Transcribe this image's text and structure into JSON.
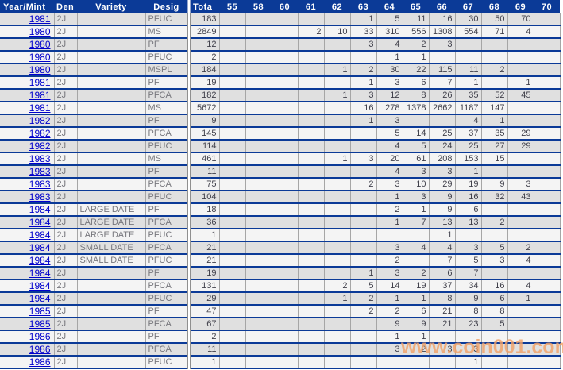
{
  "watermark": "www.coin001.com",
  "colors": {
    "header_bg": "#0b3a97",
    "row_separator": "#0b3a97",
    "cell_border": "#a6a6a6",
    "row_shaded": "#e0e0e0",
    "row_light": "#f4f4f4",
    "year_link": "#0000cc",
    "watermark_orange": "#f2a269"
  },
  "table": {
    "fixed_columns": [
      {
        "key": "year",
        "label": "Year/Mint"
      },
      {
        "key": "den",
        "label": "Den"
      },
      {
        "key": "variety",
        "label": "Variety"
      },
      {
        "key": "desig",
        "label": "Desig"
      },
      {
        "key": "total",
        "label": "Tota"
      }
    ],
    "grade_columns": [
      "55",
      "58",
      "60",
      "61",
      "62",
      "63",
      "64",
      "65",
      "66",
      "67",
      "68",
      "69",
      "70"
    ],
    "rows": [
      {
        "year": "1981",
        "den": "2J",
        "variety": "",
        "desig": "PFUC",
        "total": "183",
        "grades": [
          "",
          "",
          "",
          "",
          "",
          "1",
          "5",
          "11",
          "16",
          "30",
          "50",
          "70",
          ""
        ]
      },
      {
        "year": "1980",
        "den": "2J",
        "variety": "",
        "desig": "MS",
        "total": "2849",
        "grades": [
          "",
          "",
          "",
          "2",
          "10",
          "33",
          "310",
          "556",
          "1308",
          "554",
          "71",
          "4",
          ""
        ]
      },
      {
        "year": "1980",
        "den": "2J",
        "variety": "",
        "desig": "PF",
        "total": "12",
        "grades": [
          "",
          "",
          "",
          "",
          "",
          "3",
          "4",
          "2",
          "3",
          "",
          "",
          "",
          ""
        ]
      },
      {
        "year": "1980",
        "den": "2J",
        "variety": "",
        "desig": "PFUC",
        "total": "2",
        "grades": [
          "",
          "",
          "",
          "",
          "",
          "",
          "1",
          "1",
          "",
          "",
          "",
          "",
          ""
        ]
      },
      {
        "year": "1980",
        "den": "2J",
        "variety": "",
        "desig": "MSPL",
        "total": "184",
        "grades": [
          "",
          "",
          "",
          "",
          "1",
          "2",
          "30",
          "22",
          "115",
          "11",
          "2",
          "",
          ""
        ]
      },
      {
        "year": "1981",
        "den": "2J",
        "variety": "",
        "desig": "PF",
        "total": "19",
        "grades": [
          "",
          "",
          "",
          "",
          "",
          "1",
          "3",
          "6",
          "7",
          "1",
          "",
          "1",
          ""
        ]
      },
      {
        "year": "1981",
        "den": "2J",
        "variety": "",
        "desig": "PFCA",
        "total": "182",
        "grades": [
          "",
          "",
          "",
          "",
          "1",
          "3",
          "12",
          "8",
          "26",
          "35",
          "52",
          "45",
          ""
        ]
      },
      {
        "year": "1981",
        "den": "2J",
        "variety": "",
        "desig": "MS",
        "total": "5672",
        "grades": [
          "",
          "",
          "",
          "",
          "",
          "16",
          "278",
          "1378",
          "2662",
          "1187",
          "147",
          "",
          ""
        ]
      },
      {
        "year": "1982",
        "den": "2J",
        "variety": "",
        "desig": "PF",
        "total": "9",
        "grades": [
          "",
          "",
          "",
          "",
          "",
          "1",
          "3",
          "",
          "",
          "4",
          "1",
          "",
          ""
        ]
      },
      {
        "year": "1982",
        "den": "2J",
        "variety": "",
        "desig": "PFCA",
        "total": "145",
        "grades": [
          "",
          "",
          "",
          "",
          "",
          "",
          "5",
          "14",
          "25",
          "37",
          "35",
          "29",
          ""
        ]
      },
      {
        "year": "1982",
        "den": "2J",
        "variety": "",
        "desig": "PFUC",
        "total": "114",
        "grades": [
          "",
          "",
          "",
          "",
          "",
          "",
          "4",
          "5",
          "24",
          "25",
          "27",
          "29",
          ""
        ]
      },
      {
        "year": "1983",
        "den": "2J",
        "variety": "",
        "desig": "MS",
        "total": "461",
        "grades": [
          "",
          "",
          "",
          "",
          "1",
          "3",
          "20",
          "61",
          "208",
          "153",
          "15",
          "",
          ""
        ]
      },
      {
        "year": "1983",
        "den": "2J",
        "variety": "",
        "desig": "PF",
        "total": "11",
        "grades": [
          "",
          "",
          "",
          "",
          "",
          "",
          "4",
          "3",
          "3",
          "1",
          "",
          "",
          ""
        ]
      },
      {
        "year": "1983",
        "den": "2J",
        "variety": "",
        "desig": "PFCA",
        "total": "75",
        "grades": [
          "",
          "",
          "",
          "",
          "",
          "2",
          "3",
          "10",
          "29",
          "19",
          "9",
          "3",
          ""
        ]
      },
      {
        "year": "1983",
        "den": "2J",
        "variety": "",
        "desig": "PFUC",
        "total": "104",
        "grades": [
          "",
          "",
          "",
          "",
          "",
          "",
          "1",
          "3",
          "9",
          "16",
          "32",
          "43",
          ""
        ]
      },
      {
        "year": "1984",
        "den": "2J",
        "variety": "LARGE DATE",
        "desig": "PF",
        "total": "18",
        "grades": [
          "",
          "",
          "",
          "",
          "",
          "",
          "2",
          "1",
          "9",
          "6",
          "",
          "",
          ""
        ]
      },
      {
        "year": "1984",
        "den": "2J",
        "variety": "LARGE DATE",
        "desig": "PFCA",
        "total": "36",
        "grades": [
          "",
          "",
          "",
          "",
          "",
          "",
          "1",
          "7",
          "13",
          "13",
          "2",
          "",
          ""
        ]
      },
      {
        "year": "1984",
        "den": "2J",
        "variety": "LARGE DATE",
        "desig": "PFUC",
        "total": "1",
        "grades": [
          "",
          "",
          "",
          "",
          "",
          "",
          "",
          "",
          "1",
          "",
          "",
          "",
          ""
        ]
      },
      {
        "year": "1984",
        "den": "2J",
        "variety": "SMALL DATE",
        "desig": "PFCA",
        "total": "21",
        "grades": [
          "",
          "",
          "",
          "",
          "",
          "",
          "3",
          "4",
          "4",
          "3",
          "5",
          "2",
          ""
        ]
      },
      {
        "year": "1984",
        "den": "2J",
        "variety": "SMALL DATE",
        "desig": "PFUC",
        "total": "21",
        "grades": [
          "",
          "",
          "",
          "",
          "",
          "",
          "2",
          "",
          "7",
          "5",
          "3",
          "4",
          ""
        ]
      },
      {
        "year": "1984",
        "den": "2J",
        "variety": "",
        "desig": "PF",
        "total": "19",
        "grades": [
          "",
          "",
          "",
          "",
          "",
          "1",
          "3",
          "2",
          "6",
          "7",
          "",
          "",
          ""
        ]
      },
      {
        "year": "1984",
        "den": "2J",
        "variety": "",
        "desig": "PFCA",
        "total": "131",
        "grades": [
          "",
          "",
          "",
          "",
          "2",
          "5",
          "14",
          "19",
          "37",
          "34",
          "16",
          "4",
          ""
        ]
      },
      {
        "year": "1984",
        "den": "2J",
        "variety": "",
        "desig": "PFUC",
        "total": "29",
        "grades": [
          "",
          "",
          "",
          "",
          "1",
          "2",
          "1",
          "1",
          "8",
          "9",
          "6",
          "1",
          ""
        ]
      },
      {
        "year": "1985",
        "den": "2J",
        "variety": "",
        "desig": "PF",
        "total": "47",
        "grades": [
          "",
          "",
          "",
          "",
          "",
          "2",
          "2",
          "6",
          "21",
          "8",
          "8",
          "",
          ""
        ]
      },
      {
        "year": "1985",
        "den": "2J",
        "variety": "",
        "desig": "PFCA",
        "total": "67",
        "grades": [
          "",
          "",
          "",
          "",
          "",
          "",
          "9",
          "9",
          "21",
          "23",
          "5",
          "",
          ""
        ]
      },
      {
        "year": "1986",
        "den": "2J",
        "variety": "",
        "desig": "PF",
        "total": "2",
        "grades": [
          "",
          "",
          "",
          "",
          "",
          "",
          "1",
          "1",
          "",
          "",
          "",
          "",
          ""
        ]
      },
      {
        "year": "1986",
        "den": "2J",
        "variety": "",
        "desig": "PFCA",
        "total": "11",
        "grades": [
          "",
          "",
          "",
          "",
          "",
          "",
          "3",
          "2",
          "3",
          "3",
          "",
          "",
          ""
        ]
      },
      {
        "year": "1986",
        "den": "2J",
        "variety": "",
        "desig": "PFUC",
        "total": "1",
        "grades": [
          "",
          "",
          "",
          "",
          "",
          "",
          "",
          "",
          "",
          "1",
          "",
          "",
          ""
        ]
      }
    ]
  }
}
